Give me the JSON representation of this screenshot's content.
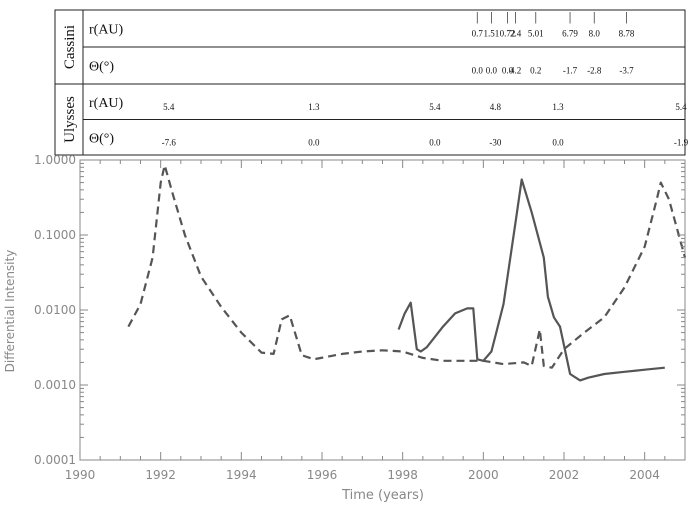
{
  "table": {
    "groups": [
      {
        "name": "Cassini",
        "rows": [
          {
            "label": "r(AU)",
            "values": [
              {
                "year": 1999.85,
                "text": "0.7"
              },
              {
                "year": 2000.2,
                "text": "1.51"
              },
              {
                "year": 2000.6,
                "text": "0.72"
              },
              {
                "year": 2000.8,
                "text": "2.4"
              },
              {
                "year": 2001.3,
                "text": "5.01"
              },
              {
                "year": 2002.15,
                "text": "6.79"
              },
              {
                "year": 2002.75,
                "text": "8.0"
              },
              {
                "year": 2003.55,
                "text": "8.78"
              }
            ]
          },
          {
            "label": "Θ(°)",
            "values": [
              {
                "year": 1999.85,
                "text": "0.0"
              },
              {
                "year": 2000.2,
                "text": "0.0"
              },
              {
                "year": 2000.6,
                "text": "0.0"
              },
              {
                "year": 2000.8,
                "text": "4.2"
              },
              {
                "year": 2001.3,
                "text": "0.2"
              },
              {
                "year": 2002.15,
                "text": "-1.7"
              },
              {
                "year": 2002.75,
                "text": "-2.8"
              },
              {
                "year": 2003.55,
                "text": "-3.7"
              }
            ]
          }
        ]
      },
      {
        "name": "Ulysses",
        "rows": [
          {
            "label": "r(AU)",
            "values": [
              {
                "year": 1992.2,
                "text": "5.4"
              },
              {
                "year": 1995.8,
                "text": "1.3"
              },
              {
                "year": 1998.8,
                "text": "5.4"
              },
              {
                "year": 2000.3,
                "text": "4.8"
              },
              {
                "year": 2001.85,
                "text": "1.3"
              },
              {
                "year": 2004.9,
                "text": "5.4"
              }
            ]
          },
          {
            "label": "Θ(°)",
            "values": [
              {
                "year": 1992.2,
                "text": "-7.6"
              },
              {
                "year": 1995.8,
                "text": "0.0"
              },
              {
                "year": 1998.8,
                "text": "0.0"
              },
              {
                "year": 2000.3,
                "text": "-30"
              },
              {
                "year": 2001.85,
                "text": "0.0"
              },
              {
                "year": 2004.9,
                "text": "-1.9"
              }
            ]
          }
        ]
      }
    ]
  },
  "chart_data": {
    "type": "line",
    "xlabel": "Time (years)",
    "ylabel": "Differential Intensity",
    "xlim": [
      1990,
      2005
    ],
    "ylim": [
      0.0001,
      1.0
    ],
    "yscale": "log",
    "x_ticks": [
      "1990",
      "1992",
      "1994",
      "1996",
      "1998",
      "2000",
      "2002",
      "2004"
    ],
    "y_ticks": [
      "0.0001",
      "0.0010",
      "0.0100",
      "0.1000",
      "1.0000"
    ],
    "grid": false,
    "colors": {
      "axis": "#888888",
      "line": "#555555"
    },
    "series": [
      {
        "style": "dashed",
        "points": [
          [
            1991.2,
            0.006
          ],
          [
            1991.5,
            0.012
          ],
          [
            1991.8,
            0.05
          ],
          [
            1992.0,
            0.5
          ],
          [
            1992.1,
            0.85
          ],
          [
            1992.3,
            0.35
          ],
          [
            1992.6,
            0.1
          ],
          [
            1993.0,
            0.028
          ],
          [
            1993.5,
            0.011
          ],
          [
            1994.0,
            0.005
          ],
          [
            1994.5,
            0.0027
          ],
          [
            1994.8,
            0.0026
          ],
          [
            1995.0,
            0.0075
          ],
          [
            1995.2,
            0.0085
          ],
          [
            1995.5,
            0.0025
          ],
          [
            1995.8,
            0.0022
          ],
          [
            1996.5,
            0.0026
          ],
          [
            1997.0,
            0.0028
          ],
          [
            1997.5,
            0.0029
          ],
          [
            1998.0,
            0.0028
          ],
          [
            1998.5,
            0.0023
          ],
          [
            1999.0,
            0.0021
          ],
          [
            2000.0,
            0.0021
          ],
          [
            2000.5,
            0.0019
          ],
          [
            2001.0,
            0.002
          ],
          [
            2001.2,
            0.0018
          ],
          [
            2001.4,
            0.0055
          ],
          [
            2001.5,
            0.0018
          ],
          [
            2001.7,
            0.0017
          ],
          [
            2002.0,
            0.003
          ],
          [
            2002.5,
            0.005
          ],
          [
            2003.0,
            0.008
          ],
          [
            2003.5,
            0.02
          ],
          [
            2004.0,
            0.07
          ],
          [
            2004.3,
            0.3
          ],
          [
            2004.4,
            0.5
          ],
          [
            2004.6,
            0.3
          ],
          [
            2005.0,
            0.05
          ]
        ]
      },
      {
        "style": "solid",
        "points": [
          [
            1997.9,
            0.0055
          ],
          [
            1998.05,
            0.009
          ],
          [
            1998.2,
            0.0125
          ],
          [
            1998.35,
            0.003
          ],
          [
            1998.45,
            0.0028
          ],
          [
            1998.6,
            0.0032
          ],
          [
            1999.0,
            0.006
          ],
          [
            1999.3,
            0.009
          ],
          [
            1999.6,
            0.0105
          ],
          [
            1999.75,
            0.0105
          ],
          [
            1999.85,
            0.0022
          ],
          [
            2000.0,
            0.0021
          ],
          [
            2000.2,
            0.0028
          ],
          [
            2000.3,
            0.0045
          ],
          [
            2000.5,
            0.012
          ],
          [
            2000.8,
            0.15
          ],
          [
            2000.95,
            0.55
          ],
          [
            2001.2,
            0.2
          ],
          [
            2001.5,
            0.05
          ],
          [
            2001.6,
            0.015
          ],
          [
            2001.75,
            0.008
          ],
          [
            2001.9,
            0.006
          ],
          [
            2002.15,
            0.0014
          ],
          [
            2002.4,
            0.00115
          ],
          [
            2002.6,
            0.00125
          ],
          [
            2003.0,
            0.0014
          ],
          [
            2003.5,
            0.0015
          ],
          [
            2004.0,
            0.0016
          ],
          [
            2004.5,
            0.0017
          ]
        ]
      }
    ]
  }
}
